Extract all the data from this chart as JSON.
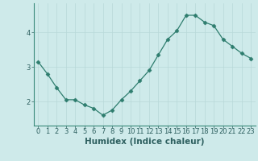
{
  "x": [
    0,
    1,
    2,
    3,
    4,
    5,
    6,
    7,
    8,
    9,
    10,
    11,
    12,
    13,
    14,
    15,
    16,
    17,
    18,
    19,
    20,
    21,
    22,
    23
  ],
  "y": [
    3.15,
    2.8,
    2.4,
    2.05,
    2.05,
    1.9,
    1.8,
    1.6,
    1.75,
    2.05,
    2.3,
    2.6,
    2.9,
    3.35,
    3.8,
    4.05,
    4.5,
    4.5,
    4.3,
    4.2,
    3.8,
    3.6,
    3.4,
    3.25
  ],
  "xlabel": "Humidex (Indice chaleur)",
  "xlim": [
    -0.5,
    23.5
  ],
  "ylim": [
    1.3,
    4.85
  ],
  "yticks": [
    2,
    3,
    4
  ],
  "xticks": [
    0,
    1,
    2,
    3,
    4,
    5,
    6,
    7,
    8,
    9,
    10,
    11,
    12,
    13,
    14,
    15,
    16,
    17,
    18,
    19,
    20,
    21,
    22,
    23
  ],
  "line_color": "#2e7d6e",
  "marker": "D",
  "marker_size": 2.5,
  "bg_color": "#ceeaea",
  "grid_color": "#b8d8d8",
  "axis_color": "#3a8a7a",
  "label_color": "#2e6060",
  "xlabel_fontsize": 7.5,
  "tick_fontsize": 6.0
}
